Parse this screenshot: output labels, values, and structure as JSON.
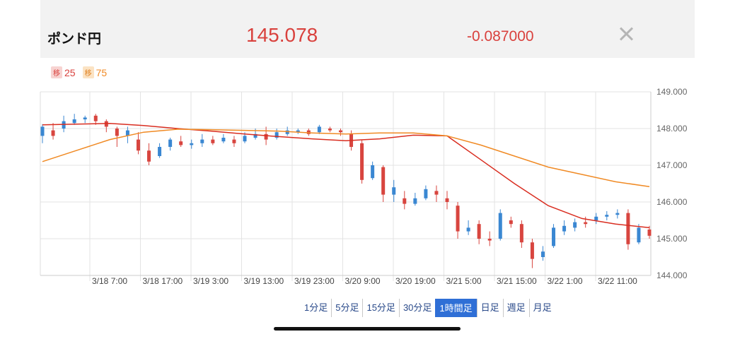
{
  "header": {
    "pair": "ポンド円",
    "price": "145.078",
    "change": "-0.087000"
  },
  "legend": {
    "ma1_badge": "移",
    "ma1_label": "25",
    "ma2_badge": "移",
    "ma2_label": "75"
  },
  "tabs": [
    "1分足",
    "5分足",
    "15分足",
    "30分足",
    "1時間足",
    "日足",
    "週足",
    "月足"
  ],
  "active_tab": "1時間足",
  "colors": {
    "up": "#3a87d2",
    "down": "#d8453f",
    "ma25": "#d92d20",
    "ma75": "#f08a24",
    "grid": "#e3e3e3"
  },
  "chart_data": {
    "type": "candlestick",
    "ylim": [
      144.0,
      149.0
    ],
    "yticks": [
      "149.000",
      "148.000",
      "147.000",
      "146.000",
      "145.000",
      "144.000"
    ],
    "xticks": [
      "3/18 7:00",
      "3/18 17:00",
      "3/19 3:00",
      "3/19 13:00",
      "3/19 23:00",
      "3/20 9:00",
      "3/20 19:00",
      "3/21 5:00",
      "3/21 15:00",
      "3/22 1:00",
      "3/22 11:00"
    ],
    "series": [
      {
        "name": "25",
        "values": [
          148.1,
          148.12,
          148.14,
          148.08,
          148.0,
          147.93,
          147.85,
          147.78,
          147.72,
          147.67,
          147.72,
          147.82,
          147.8,
          147.15,
          146.5,
          145.9,
          145.55,
          145.4,
          145.3
        ]
      },
      {
        "name": "75",
        "values": [
          147.1,
          147.4,
          147.7,
          147.9,
          147.98,
          147.97,
          147.95,
          147.93,
          147.88,
          147.85,
          147.88,
          147.88,
          147.8,
          147.55,
          147.25,
          146.95,
          146.75,
          146.55,
          146.42
        ]
      }
    ],
    "candles": [
      [
        147.8,
        148.05,
        147.6,
        148.12
      ],
      [
        147.95,
        147.8,
        147.7,
        148.15
      ],
      [
        148.0,
        148.2,
        147.9,
        148.35
      ],
      [
        148.15,
        148.25,
        148.1,
        148.4
      ],
      [
        148.25,
        148.3,
        148.15,
        148.35
      ],
      [
        148.35,
        148.2,
        148.1,
        148.4
      ],
      [
        148.2,
        148.05,
        147.9,
        148.25
      ],
      [
        148.0,
        147.8,
        147.5,
        148.05
      ],
      [
        147.8,
        147.95,
        147.6,
        148.05
      ],
      [
        147.7,
        147.4,
        147.3,
        147.9
      ],
      [
        147.4,
        147.1,
        147.0,
        147.6
      ],
      [
        147.25,
        147.5,
        147.2,
        147.6
      ],
      [
        147.5,
        147.7,
        147.4,
        147.75
      ],
      [
        147.65,
        147.55,
        147.5,
        147.8
      ],
      [
        147.55,
        147.6,
        147.45,
        147.7
      ],
      [
        147.6,
        147.7,
        147.5,
        147.85
      ],
      [
        147.7,
        147.6,
        147.55,
        147.8
      ],
      [
        147.65,
        147.75,
        147.6,
        147.85
      ],
      [
        147.7,
        147.6,
        147.5,
        147.8
      ],
      [
        147.65,
        147.8,
        147.6,
        147.9
      ],
      [
        147.75,
        147.85,
        147.7,
        148.0
      ],
      [
        147.85,
        147.7,
        147.55,
        148.05
      ],
      [
        147.75,
        147.9,
        147.7,
        148.0
      ],
      [
        147.85,
        147.95,
        147.8,
        148.05
      ],
      [
        147.9,
        147.95,
        147.85,
        148.0
      ],
      [
        147.95,
        147.85,
        147.8,
        148.0
      ],
      [
        147.9,
        148.05,
        147.85,
        148.1
      ],
      [
        148.0,
        147.95,
        147.9,
        148.05
      ],
      [
        147.95,
        147.9,
        147.8,
        148.0
      ],
      [
        147.85,
        147.5,
        147.4,
        147.95
      ],
      [
        147.6,
        146.6,
        146.5,
        147.7
      ],
      [
        146.65,
        147.0,
        146.6,
        147.1
      ],
      [
        146.95,
        146.2,
        146.0,
        147.0
      ],
      [
        146.2,
        146.4,
        146.0,
        146.6
      ],
      [
        146.1,
        145.95,
        145.8,
        146.3
      ],
      [
        145.95,
        146.1,
        145.9,
        146.25
      ],
      [
        146.1,
        146.35,
        146.05,
        146.45
      ],
      [
        146.3,
        146.2,
        146.0,
        146.45
      ],
      [
        146.1,
        146.0,
        145.8,
        146.3
      ],
      [
        145.9,
        145.2,
        145.0,
        146.0
      ],
      [
        145.2,
        145.3,
        145.1,
        145.5
      ],
      [
        145.4,
        145.0,
        144.85,
        145.5
      ],
      [
        145.0,
        144.95,
        144.8,
        145.2
      ],
      [
        145.0,
        145.7,
        144.95,
        145.8
      ],
      [
        145.5,
        145.4,
        145.3,
        145.6
      ],
      [
        145.4,
        144.9,
        144.75,
        145.5
      ],
      [
        144.9,
        144.45,
        144.2,
        145.0
      ],
      [
        144.5,
        144.65,
        144.4,
        144.8
      ],
      [
        144.8,
        145.3,
        144.75,
        145.4
      ],
      [
        145.2,
        145.35,
        145.1,
        145.5
      ],
      [
        145.3,
        145.45,
        145.2,
        145.55
      ],
      [
        145.45,
        145.4,
        145.3,
        145.6
      ],
      [
        145.5,
        145.6,
        145.4,
        145.7
      ],
      [
        145.6,
        145.65,
        145.5,
        145.75
      ],
      [
        145.65,
        145.7,
        145.55,
        145.8
      ],
      [
        145.7,
        144.85,
        144.7,
        145.8
      ],
      [
        144.9,
        145.3,
        144.85,
        145.4
      ],
      [
        145.25,
        145.08,
        145.0,
        145.35
      ]
    ]
  }
}
